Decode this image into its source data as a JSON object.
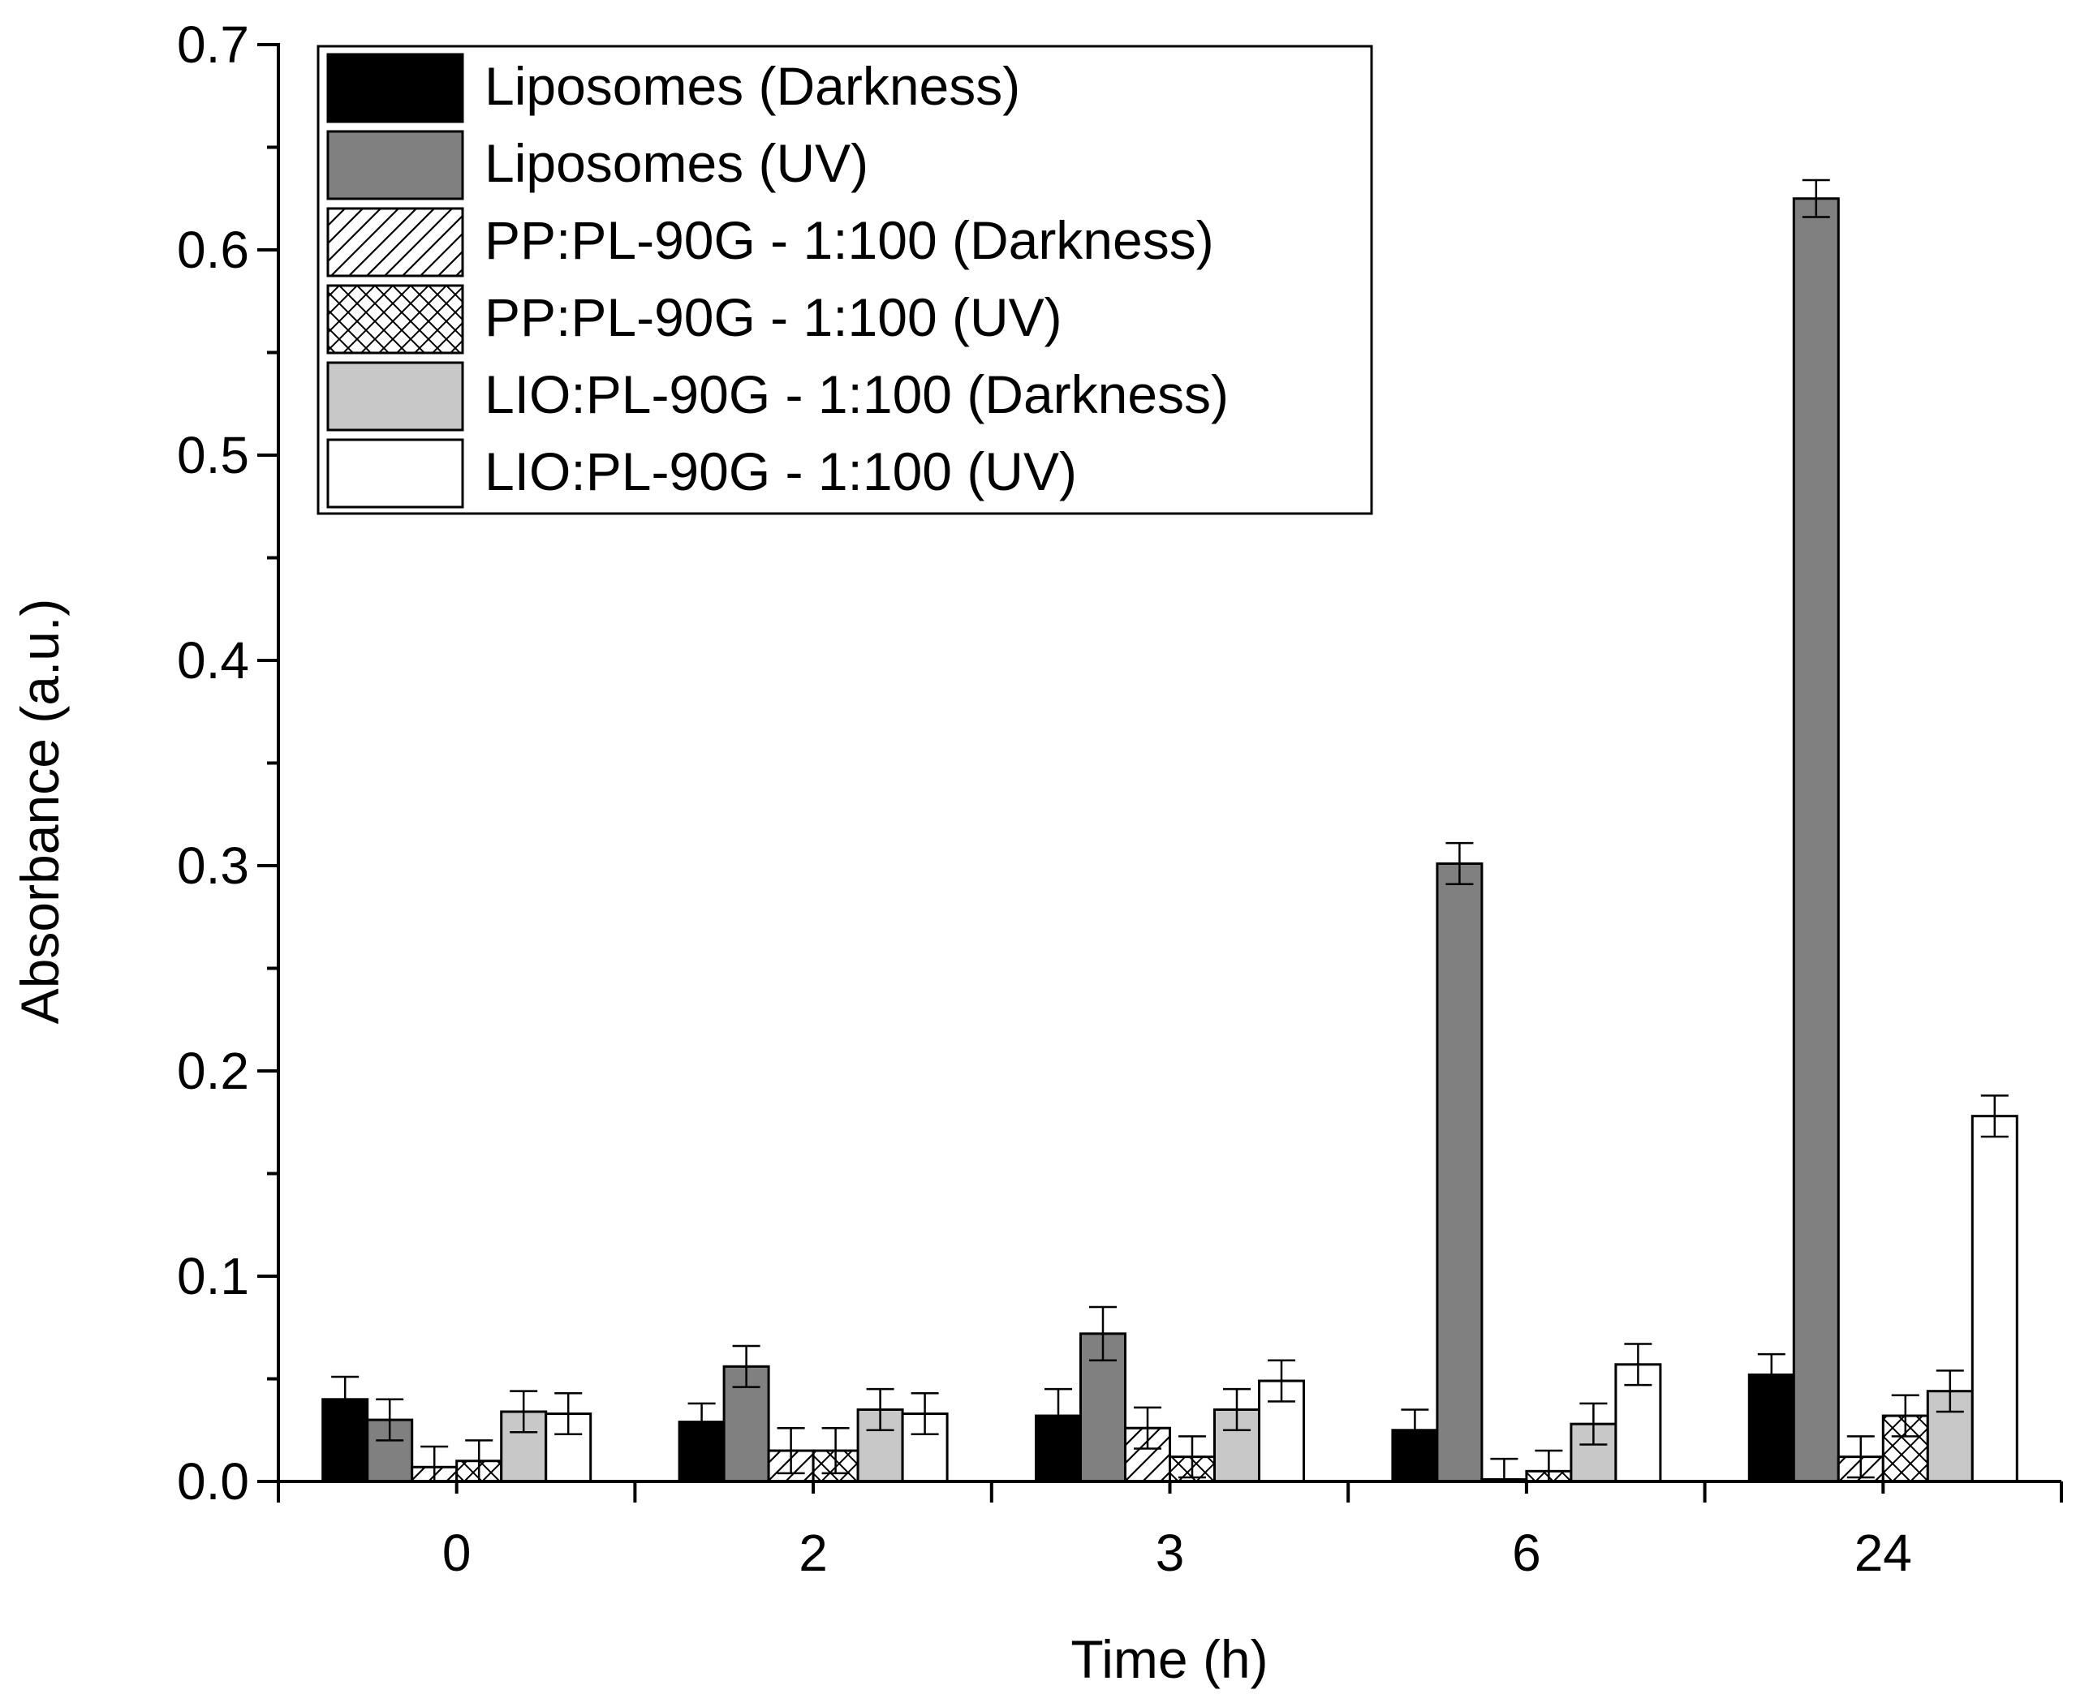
{
  "chart_data": {
    "type": "bar",
    "title": "",
    "xlabel": "Time (h)",
    "ylabel": "Absorbance (a.u.)",
    "categories": [
      "0",
      "2",
      "3",
      "6",
      "24"
    ],
    "ylim": [
      0.0,
      0.7
    ],
    "yticks": [
      0.0,
      0.1,
      0.2,
      0.3,
      0.4,
      0.5,
      0.6,
      0.7
    ],
    "ytick_labels": [
      "0.0",
      "0.1",
      "0.2",
      "0.3",
      "0.4",
      "0.5",
      "0.6",
      "0.7"
    ],
    "grid": false,
    "legend_position": "top-left",
    "series": [
      {
        "name": "Liposomes (Darkness)",
        "fill": "#000000",
        "pattern": "solid",
        "values": [
          0.04,
          0.029,
          0.032,
          0.025,
          0.052
        ],
        "errors": [
          0.011,
          0.009,
          0.013,
          0.01,
          0.01
        ]
      },
      {
        "name": "Liposomes (UV)",
        "fill": "#808080",
        "pattern": "solid",
        "values": [
          0.03,
          0.056,
          0.072,
          0.301,
          0.625
        ],
        "errors": [
          0.01,
          0.01,
          0.013,
          0.01,
          0.009
        ]
      },
      {
        "name": "PP:PL-90G - 1:100 (Darkness)",
        "fill": "#ffffff",
        "pattern": "hatch",
        "values": [
          0.007,
          0.015,
          0.026,
          0.001,
          0.012
        ],
        "errors": [
          0.01,
          0.011,
          0.01,
          0.01,
          0.01
        ]
      },
      {
        "name": "PP:PL-90G - 1:100 (UV)",
        "fill": "#ffffff",
        "pattern": "crosshatch",
        "values": [
          0.01,
          0.015,
          0.012,
          0.005,
          0.032
        ],
        "errors": [
          0.01,
          0.011,
          0.01,
          0.01,
          0.01
        ]
      },
      {
        "name": "LIO:PL-90G - 1:100 (Darkness)",
        "fill": "#c8c8c8",
        "pattern": "solid",
        "values": [
          0.034,
          0.035,
          0.035,
          0.028,
          0.044
        ],
        "errors": [
          0.01,
          0.01,
          0.01,
          0.01,
          0.01
        ]
      },
      {
        "name": "LIO:PL-90G - 1:100 (UV)",
        "fill": "#ffffff",
        "pattern": "solid",
        "values": [
          0.033,
          0.033,
          0.049,
          0.057,
          0.178
        ],
        "errors": [
          0.01,
          0.01,
          0.01,
          0.01,
          0.01
        ]
      }
    ]
  }
}
